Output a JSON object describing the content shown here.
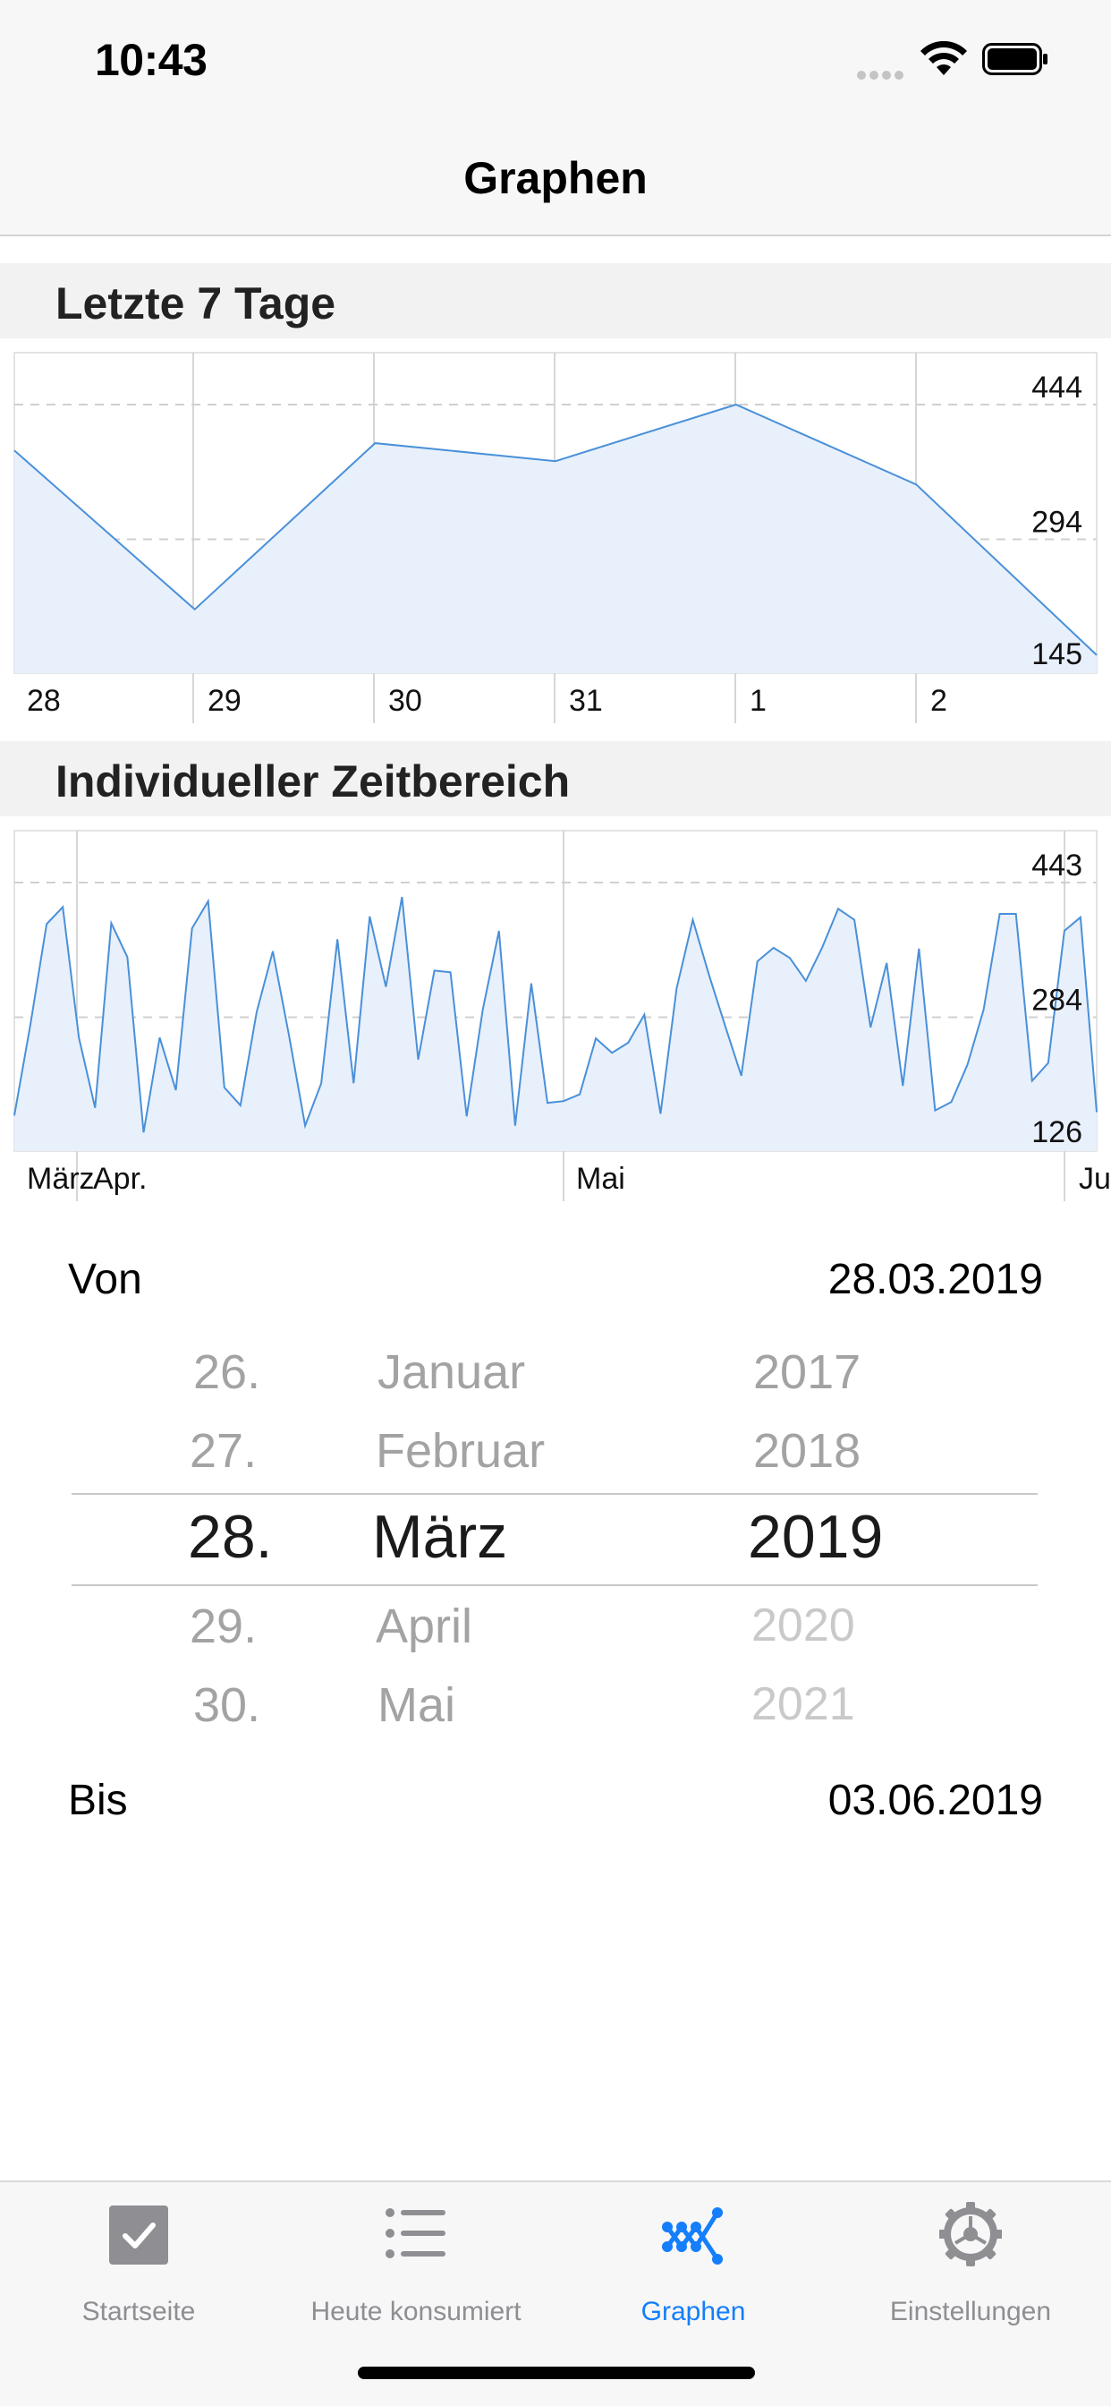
{
  "status_bar": {
    "time": "10:43"
  },
  "nav": {
    "title": "Graphen"
  },
  "section1": {
    "title": "Letzte 7 Tage"
  },
  "chart1": {
    "type": "area",
    "x_labels": [
      "28",
      "29",
      "30",
      "31",
      "1",
      "2"
    ],
    "y_labels": [
      "444",
      "294",
      "145"
    ],
    "values": [
      393,
      216,
      401,
      381,
      444,
      355,
      165
    ],
    "ylim": [
      145,
      444
    ],
    "line_color": "#4a90d9",
    "fill_color": "#e8f0fb"
  },
  "section2": {
    "title": "Individueller Zeitbereich"
  },
  "chart2": {
    "type": "area",
    "x_labels": [
      "März",
      "Apr.",
      "Mai",
      "Ju"
    ],
    "y_labels": [
      "443",
      "284",
      "126"
    ],
    "values": [
      168,
      276,
      394,
      414,
      260,
      177,
      395,
      355,
      148,
      260,
      198,
      389,
      421,
      201,
      180,
      290,
      362,
      263,
      156,
      206,
      376,
      206,
      403,
      320,
      426,
      234,
      339,
      337,
      167,
      293,
      386,
      156,
      324,
      183,
      185,
      193,
      259,
      242,
      254,
      287,
      170,
      318,
      399,
      334,
      274,
      215,
      350,
      366,
      354,
      327,
      366,
      412,
      399,
      272,
      348,
      203,
      365,
      174,
      184,
      228,
      293,
      406,
      406,
      209,
      230,
      386,
      402,
      172
    ],
    "ylim": [
      126,
      443
    ],
    "line_color": "#4a90d9",
    "fill_color": "#e8f0fb"
  },
  "range": {
    "from_label": "Von",
    "from_value": "28.03.2019",
    "to_label": "Bis",
    "to_value": "03.06.2019"
  },
  "picker": {
    "days": [
      "26.",
      "27.",
      "28.",
      "29.",
      "30."
    ],
    "months": [
      "Januar",
      "Februar",
      "März",
      "April",
      "Mai"
    ],
    "years": [
      "2017",
      "2018",
      "2019",
      "2020",
      "2021"
    ]
  },
  "tabs": [
    {
      "label": "Startseite",
      "icon": "checkbox-icon"
    },
    {
      "label": "Heute konsumiert",
      "icon": "list-icon"
    },
    {
      "label": "Graphen",
      "icon": "graph-icon"
    },
    {
      "label": "Einstellungen",
      "icon": "gear-icon"
    }
  ],
  "colors": {
    "accent": "#147efb",
    "inactive": "#8e8e93"
  }
}
